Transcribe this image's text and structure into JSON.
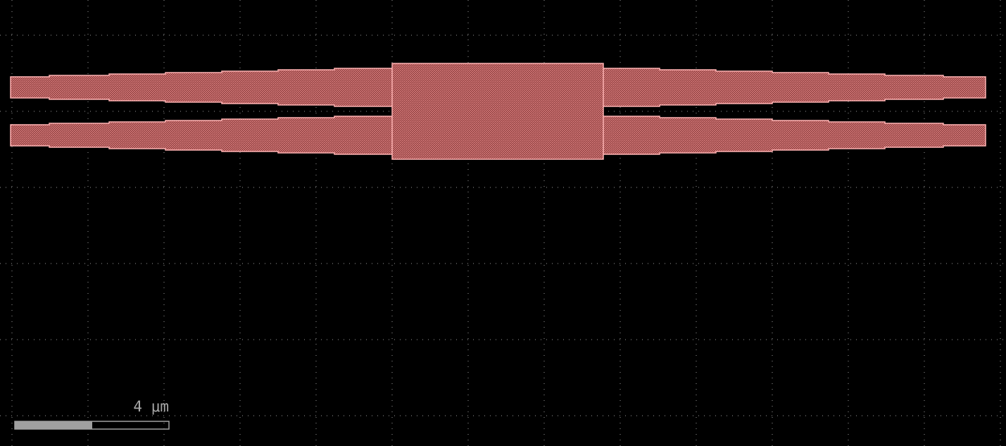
{
  "scale_bar": {
    "label": "4 μm"
  }
}
